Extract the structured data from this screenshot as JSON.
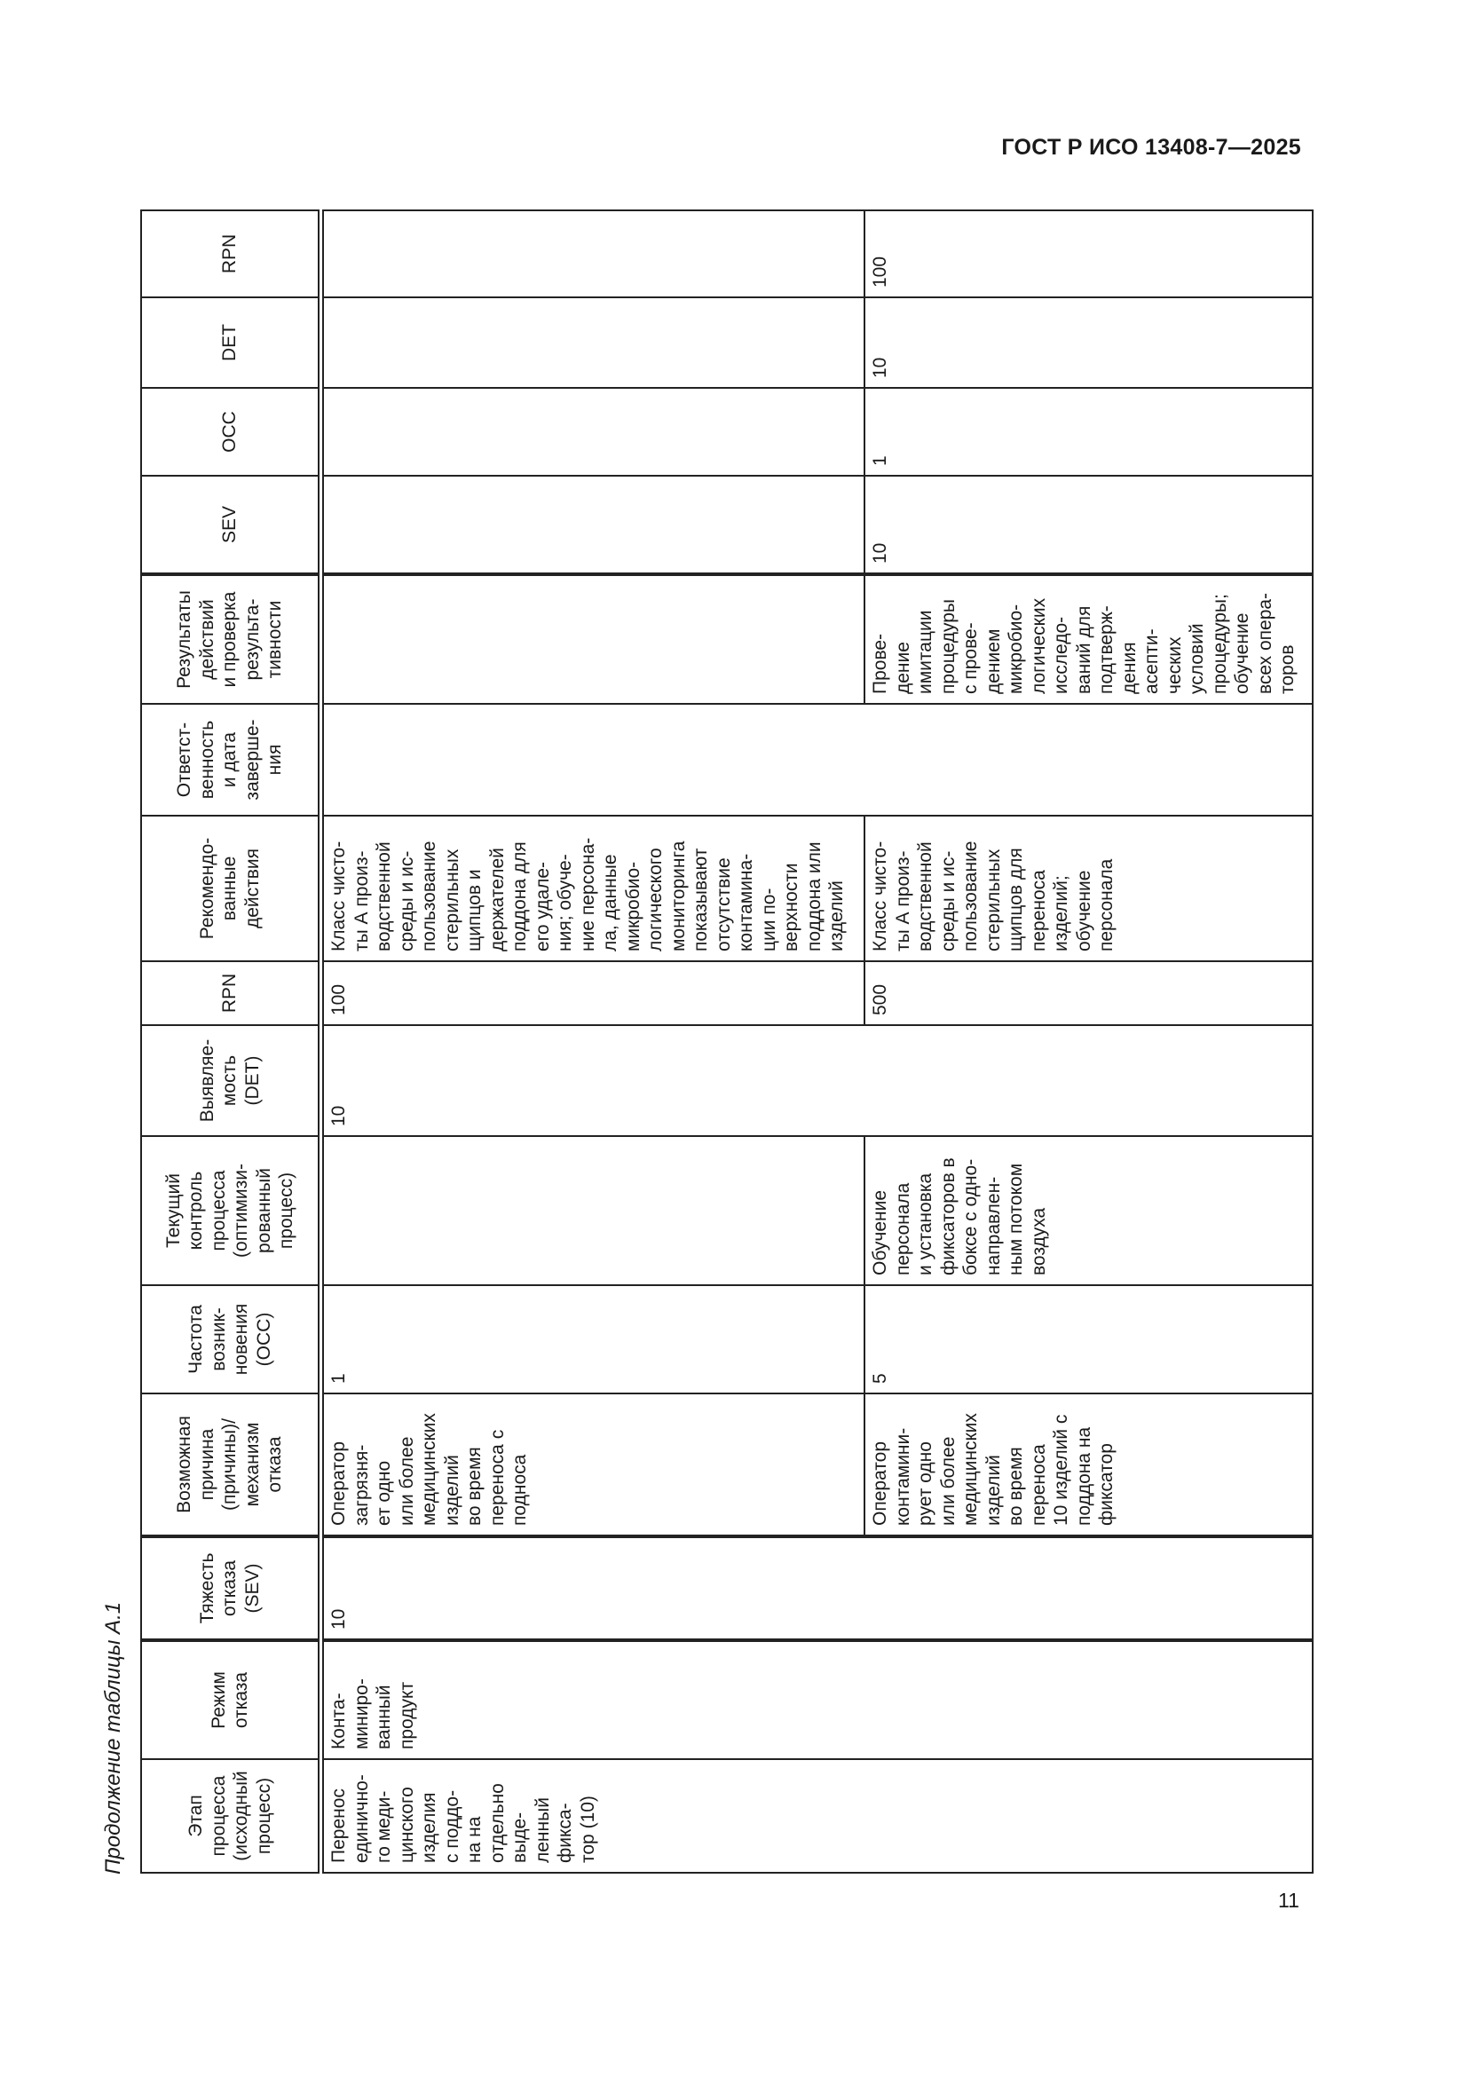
{
  "document": {
    "code": "ГОСТ Р ИСО 13408-7—2025",
    "caption": "Продолжение таблицы А.1",
    "page_number": "11"
  },
  "table": {
    "headers": [
      "Этап\nпроцесса\n(исходный\nпроцесс)",
      "Режим\nотказа",
      "Тяжесть\nотказа\n(SEV)",
      "Возможная\nпричина\n(причины)/\nмеханизм\nотказа",
      "Частота\nвозник-\nновения\n(OCC)",
      "Текущий\nконтроль\nпроцесса\n(оптимизи-\nрованный\nпроцесс)",
      "Выявляе-\nмость\n(DET)",
      "RPN",
      "Рекомендо-\nванные\nдействия",
      "Ответст-\nвенность\nи дата\nзаверше-\nния",
      "Результаты\nдействий\nи проверка\nрезульта-\nтивности",
      "SEV",
      "OCC",
      "DET",
      "RPN"
    ],
    "merged": {
      "stage": "Перенос\nединично-\nго меди-\nцинского\nизделия\nс поддо-\nна на\nотдельно\nвыде-\nленный\nфикса-\nтор (10)",
      "failure_mode": "Конта-\nминиро-\nванный\nпродукт",
      "severity": "10",
      "detectability": "10",
      "responsibility": ""
    },
    "rows": [
      {
        "cause": "Оператор\nзагрязня-\nет одно\nили более\nмедицинских\nизделий\nво время\nпереноса с\nподноса",
        "occ": "1",
        "control": "",
        "rpn": "100",
        "actions": "Класс чисто-\nты А произ-\nводственной\nсреды и ис-\nпользование\nстерильных\nщипцов и\nдержателей\nподдона для\nего удале-\nния; обуче-\nние персона-\nла, данные\nмикробио-\nлогического\nмониторинга\nпоказывают\nотсутствие\nконтамина-\nции по-\nверхности\nподдона или\nизделий",
        "results": "",
        "sev2": "",
        "occ2": "",
        "det2": "",
        "rpn2": ""
      },
      {
        "cause": "Оператор\nконтамини-\nрует одно\nили более\nмедицинских\nизделий\nво время\nпереноса\n10 изделий с\nподдона на\nфиксатор",
        "occ": "5",
        "control": "Обучение\nперсонала\nи установка\nфиксаторов в\nбоксе с одно-\nнаправлен-\nным потоком\nвоздуха",
        "rpn": "500",
        "actions": "Класс чисто-\nты А произ-\nводственной\nсреды и ис-\nпользование\nстерильных\nщипцов для\nпереноса\nизделий;\nобучение\nперсонала",
        "results": "Прове-\nдение\nимитации\nпроцедуры\nс прове-\nдением\nмикробио-\nлогических\nисследо-\nваний для\nподтверж-\nдения\nасепти-\nческих\nусловий\nпроцедуры;\nобучение\nвсех опера-\nторов",
        "sev2": "10",
        "occ2": "1",
        "det2": "10",
        "rpn2": "100"
      }
    ]
  }
}
